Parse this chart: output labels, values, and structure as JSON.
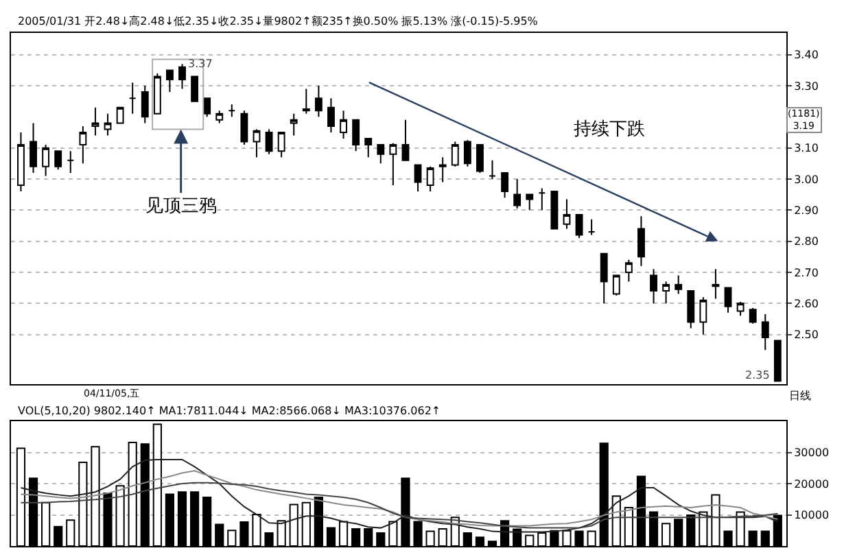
{
  "chart_data": [
    {
      "type": "candlestick",
      "subtitle": "2005/01/31 开2.48↓高2.48↓低2.35↓收2.35↓量9802↑额235↑换0.50% 振5.13% 涨(-0.15)-5.95%",
      "categories": [
        null,
        null,
        null,
        null,
        null,
        null,
        null,
        null,
        null,
        null,
        null,
        null,
        null,
        null,
        null,
        null,
        null,
        null,
        null,
        null,
        null,
        null,
        null,
        null,
        null,
        null,
        null,
        null,
        null,
        null,
        null,
        null,
        null,
        null,
        null,
        null,
        null,
        null,
        null,
        null,
        null,
        null,
        null,
        null,
        null,
        null,
        null,
        null,
        null,
        null,
        null,
        null,
        null,
        null,
        null,
        null,
        null,
        null,
        null,
        null,
        null,
        null
      ],
      "ohlc": [
        [
          2.98,
          3.15,
          2.96,
          3.11
        ],
        [
          3.12,
          3.18,
          3.02,
          3.04
        ],
        [
          3.04,
          3.11,
          3.01,
          3.1
        ],
        [
          3.09,
          3.09,
          3.03,
          3.04
        ],
        [
          3.06,
          3.09,
          3.02,
          3.06
        ],
        [
          3.11,
          3.17,
          3.05,
          3.15
        ],
        [
          3.17,
          3.23,
          3.14,
          3.18
        ],
        [
          3.16,
          3.21,
          3.14,
          3.18
        ],
        [
          3.18,
          3.23,
          3.18,
          3.23
        ],
        [
          3.26,
          3.31,
          3.21,
          3.26
        ],
        [
          3.28,
          3.3,
          3.18,
          3.2
        ],
        [
          3.21,
          3.34,
          3.21,
          3.33
        ],
        [
          3.35,
          3.35,
          3.28,
          3.32
        ],
        [
          3.36,
          3.37,
          3.29,
          3.32
        ],
        [
          3.33,
          3.33,
          3.25,
          3.25
        ],
        [
          3.26,
          3.26,
          3.2,
          3.21
        ],
        [
          3.19,
          3.22,
          3.18,
          3.21
        ],
        [
          3.22,
          3.24,
          3.2,
          3.22
        ],
        [
          3.21,
          3.22,
          3.11,
          3.12
        ],
        [
          3.12,
          3.16,
          3.07,
          3.155
        ],
        [
          3.15,
          3.16,
          3.08,
          3.09
        ],
        [
          3.09,
          3.15,
          3.07,
          3.15
        ],
        [
          3.18,
          3.21,
          3.14,
          3.19
        ],
        [
          3.22,
          3.29,
          3.21,
          3.225
        ],
        [
          3.26,
          3.3,
          3.2,
          3.22
        ],
        [
          3.23,
          3.26,
          3.15,
          3.17
        ],
        [
          3.15,
          3.22,
          3.13,
          3.19
        ],
        [
          3.19,
          3.19,
          3.09,
          3.11
        ],
        [
          3.13,
          3.13,
          3.07,
          3.11
        ],
        [
          3.11,
          3.11,
          3.05,
          3.08
        ],
        [
          3.08,
          3.115,
          2.98,
          3.11
        ],
        [
          3.11,
          3.19,
          3.06,
          3.06
        ],
        [
          3.045,
          3.045,
          2.96,
          2.99
        ],
        [
          2.98,
          3.04,
          2.96,
          3.035
        ],
        [
          3.04,
          3.07,
          2.99,
          3.045
        ],
        [
          3.045,
          3.12,
          3.04,
          3.11
        ],
        [
          3.12,
          3.125,
          3.04,
          3.05
        ],
        [
          3.11,
          3.11,
          3.02,
          3.025
        ],
        [
          3.01,
          3.06,
          3.0,
          3.01
        ],
        [
          3.02,
          3.02,
          2.94,
          2.96
        ],
        [
          2.95,
          3.0,
          2.905,
          2.915
        ],
        [
          2.95,
          2.95,
          2.9,
          2.935
        ],
        [
          2.955,
          2.97,
          2.9,
          2.955
        ],
        [
          2.96,
          2.96,
          2.84,
          2.84
        ],
        [
          2.855,
          2.935,
          2.84,
          2.885
        ],
        [
          2.885,
          2.885,
          2.81,
          2.82
        ],
        [
          2.83,
          2.87,
          2.82,
          2.83
        ],
        [
          2.76,
          2.76,
          2.6,
          2.67
        ],
        [
          2.63,
          2.69,
          2.625,
          2.69
        ],
        [
          2.7,
          2.74,
          2.67,
          2.73
        ],
        [
          2.84,
          2.88,
          2.72,
          2.75
        ],
        [
          2.69,
          2.71,
          2.6,
          2.64
        ],
        [
          2.64,
          2.67,
          2.6,
          2.66
        ],
        [
          2.66,
          2.69,
          2.63,
          2.645
        ],
        [
          2.64,
          2.64,
          2.52,
          2.54
        ],
        [
          2.54,
          2.62,
          2.5,
          2.61
        ],
        [
          2.655,
          2.71,
          2.615,
          2.66
        ],
        [
          2.65,
          2.65,
          2.57,
          2.59
        ],
        [
          2.575,
          2.605,
          2.56,
          2.6
        ],
        [
          2.58,
          2.585,
          2.535,
          2.54
        ],
        [
          2.54,
          2.565,
          2.45,
          2.49
        ],
        [
          2.48,
          2.48,
          2.35,
          2.35
        ]
      ],
      "ylim": [
        2.34,
        3.47
      ],
      "yticks": [
        {
          "value": 2.5,
          "label": "2.50"
        },
        {
          "value": 2.6,
          "label": "2.60"
        },
        {
          "value": 2.7,
          "label": "2.70"
        },
        {
          "value": 2.8,
          "label": "2.80"
        },
        {
          "value": 2.9,
          "label": "2.90"
        },
        {
          "value": 3.0,
          "label": "3.00"
        },
        {
          "value": 3.1,
          "label": "3.10"
        },
        {
          "value": 3.3,
          "label": "3.30"
        },
        {
          "value": 3.4,
          "label": "3.40"
        }
      ],
      "grid": "y",
      "annotations": [
        "见顶三鸦",
        "持续下跌",
        "(1181)\n3.19",
        "04/11/05,五",
        "日线",
        "3.37",
        "2.35"
      ]
    },
    {
      "type": "bar",
      "title": "VOL(5,10,20) 9802.140↑ MA1:7811.044↓ MA2:8566.068↓ MA3:10376.062↑",
      "categories": [
        null,
        null,
        null,
        null,
        null,
        null,
        null,
        null,
        null,
        null,
        null,
        null,
        null,
        null,
        null,
        null,
        null,
        null,
        null,
        null,
        null,
        null,
        null,
        null,
        null,
        null,
        null,
        null,
        null,
        null,
        null,
        null,
        null,
        null,
        null,
        null,
        null,
        null,
        null,
        null,
        null,
        null,
        null,
        null,
        null,
        null,
        null,
        null,
        null,
        null,
        null,
        null,
        null,
        null,
        null,
        null,
        null,
        null,
        null,
        null,
        null,
        null
      ],
      "series": [
        {
          "type": "bar",
          "values": [
            31300,
            21700,
            13900,
            6200,
            8300,
            26800,
            31800,
            16900,
            19300,
            33200,
            32700,
            39000,
            16600,
            17300,
            17300,
            15600,
            6900,
            5000,
            7700,
            10100,
            4200,
            8100,
            13300,
            13900,
            15600,
            5800,
            7800,
            5500,
            5500,
            4200,
            7800,
            21700,
            7800,
            4700,
            5500,
            9200,
            4200,
            2800,
            1500,
            8100,
            5400,
            3400,
            4200,
            4900,
            4900,
            4700,
            4700,
            32900,
            16000,
            12300,
            22300,
            10900,
            7200,
            8500,
            9900,
            10900,
            16400,
            4700,
            10900,
            4700,
            4700,
            9800
          ],
          "colors": [
            "#ffffff",
            "#000000",
            "#ffffff",
            "#000000",
            "#ffffff",
            "#ffffff",
            "#ffffff",
            "#000000",
            "#ffffff",
            "#ffffff",
            "#000000",
            "#ffffff",
            "#000000",
            "#000000",
            "#000000",
            "#000000",
            "#000000",
            "#ffffff",
            "#000000",
            "#ffffff",
            "#000000",
            "#ffffff",
            "#ffffff",
            "#ffffff",
            "#000000",
            "#000000",
            "#ffffff",
            "#000000",
            "#000000",
            "#000000",
            "#ffffff",
            "#000000",
            "#000000",
            "#ffffff",
            "#ffffff",
            "#ffffff",
            "#000000",
            "#000000",
            "#000000",
            "#000000",
            "#000000",
            "#ffffff",
            "#ffffff",
            "#000000",
            "#ffffff",
            "#000000",
            "#ffffff",
            "#000000",
            "#ffffff",
            "#ffffff",
            "#000000",
            "#000000",
            "#ffffff",
            "#000000",
            "#000000",
            "#ffffff",
            "#ffffff",
            "#000000",
            "#ffffff",
            "#000000",
            "#000000",
            "#000000"
          ]
        },
        {
          "type": "line",
          "color": "#222222",
          "values": [
            18700,
            17700,
            16900,
            16400,
            16000,
            16600,
            17300,
            19100,
            21400,
            25400,
            27500,
            27700,
            27700,
            27700,
            25400,
            22700,
            20000,
            16000,
            12600,
            10100,
            7400,
            7200,
            8500,
            9600,
            9600,
            8900,
            7800,
            7200,
            6100,
            5800,
            7400,
            9900,
            8500,
            7800,
            7200,
            6900,
            6100,
            5500,
            4700,
            4500,
            4500,
            4500,
            4500,
            4700,
            5100,
            5800,
            7200,
            9900,
            13900,
            16000,
            18700,
            18700,
            16000,
            13200,
            11200,
            9900,
            9200,
            9200,
            9200,
            9200,
            9500,
            7800
          ]
        },
        {
          "type": "line",
          "color": "#888888",
          "values": [
            16600,
            16400,
            16000,
            15600,
            15300,
            15600,
            16200,
            16900,
            18000,
            19300,
            20300,
            21400,
            22300,
            23400,
            24100,
            22700,
            21400,
            20000,
            19100,
            18000,
            17300,
            16600,
            16000,
            15300,
            14600,
            13900,
            13200,
            12800,
            12300,
            11900,
            10900,
            9200,
            8500,
            8100,
            7700,
            7200,
            6900,
            6600,
            6500,
            6500,
            6500,
            6500,
            6800,
            7100,
            7200,
            7800,
            8500,
            9900,
            10900,
            11500,
            12300,
            12600,
            12800,
            12600,
            12300,
            12800,
            13200,
            12800,
            12300,
            10500,
            9500,
            8600
          ]
        },
        {
          "type": "line",
          "color": "#444444",
          "values": [
            13900,
            13900,
            13900,
            14200,
            14300,
            14600,
            14900,
            15300,
            15800,
            16600,
            17700,
            18500,
            19300,
            20000,
            20300,
            20300,
            20100,
            19800,
            19600,
            19100,
            18300,
            17700,
            17200,
            16600,
            16400,
            16000,
            15600,
            15000,
            13900,
            12300,
            10500,
            9200,
            8900,
            8700,
            8500,
            8300,
            7800,
            7400,
            6900,
            6400,
            6100,
            5800,
            5800,
            5800,
            5800,
            5800,
            6500,
            8500,
            9200,
            9200,
            9200,
            9200,
            9200,
            9200,
            9200,
            9200,
            9200,
            9300,
            9500,
            9600,
            9900,
            10400
          ]
        }
      ],
      "ylim": [
        0,
        40000
      ],
      "yticks": [
        10000,
        20000,
        30000
      ],
      "grid": "y"
    }
  ]
}
